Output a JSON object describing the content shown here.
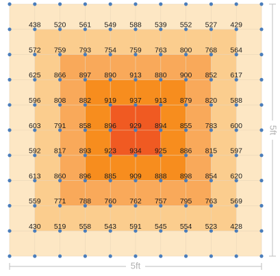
{
  "colors": {
    "zone_1": "#fde7c4",
    "zone_2": "#fbcd8e",
    "zone_3": "#f9a95a",
    "zone_4": "#f78d1e",
    "zone_5": "#f05a22",
    "node": "#4a7dbb",
    "gridline": "#e9d5b8",
    "dimension": "#bdbdbd"
  },
  "dimensions": {
    "width_label": "5ft",
    "height_label": "5ft"
  },
  "readings": [
    [
      438,
      520,
      561,
      549,
      588,
      539,
      552,
      527,
      429
    ],
    [
      572,
      759,
      793,
      754,
      759,
      763,
      800,
      768,
      564
    ],
    [
      625,
      866,
      897,
      890,
      913,
      880,
      900,
      852,
      617
    ],
    [
      596,
      808,
      882,
      919,
      937,
      913,
      879,
      820,
      588
    ],
    [
      603,
      791,
      858,
      896,
      929,
      894,
      855,
      783,
      600
    ],
    [
      592,
      817,
      893,
      923,
      934,
      925,
      886,
      815,
      597
    ],
    [
      613,
      860,
      896,
      885,
      909,
      888,
      898,
      854,
      620
    ],
    [
      559,
      771,
      788,
      760,
      762,
      757,
      795,
      763,
      569
    ],
    [
      430,
      519,
      558,
      543,
      591,
      545,
      554,
      523,
      428
    ]
  ]
}
